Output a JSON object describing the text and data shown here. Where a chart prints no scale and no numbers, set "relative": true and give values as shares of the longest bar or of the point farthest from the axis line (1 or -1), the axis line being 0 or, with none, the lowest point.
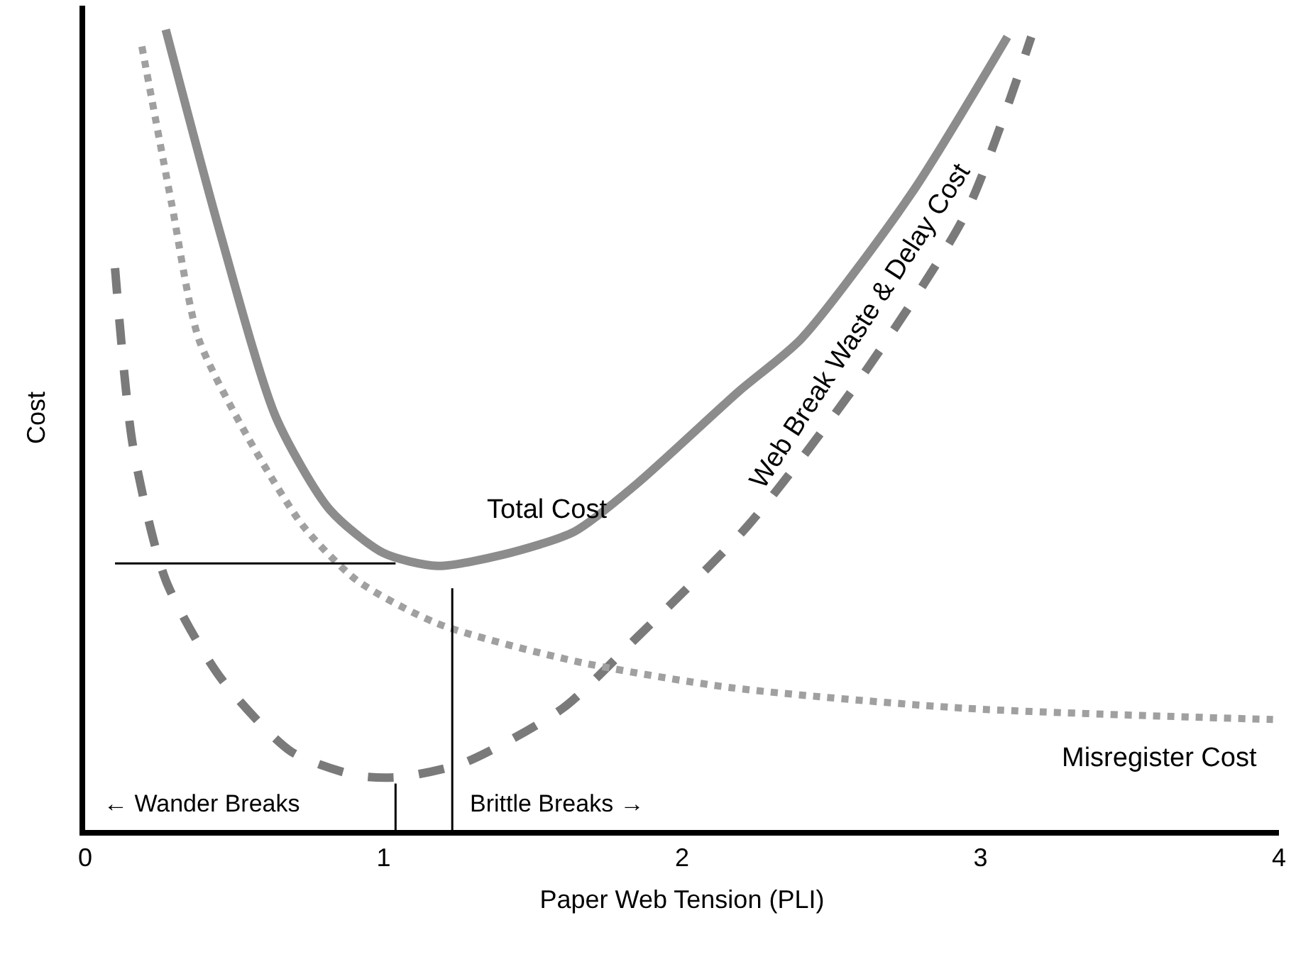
{
  "chart_data": {
    "type": "line",
    "relative": true,
    "xlabel": "Paper Web Tension (PLI)",
    "ylabel": "Cost",
    "xlim": [
      0,
      4
    ],
    "xticks": [
      0,
      1,
      2,
      3,
      4
    ],
    "legend": false,
    "tick_labels": "x",
    "marker": "none",
    "series": [
      {
        "name": "Total Cost",
        "color": "#8c8c8c",
        "line_style": "solid",
        "x": [
          0.27,
          0.45,
          0.64,
          0.82,
          1.0,
          1.18,
          1.4,
          1.64,
          1.85,
          2.19,
          2.4,
          2.77,
          3.09
        ],
        "values": [
          1,
          0.749,
          0.515,
          0.4,
          0.346,
          0.33,
          0.344,
          0.373,
          0.433,
          0.548,
          0.614,
          0.796,
          0.991
        ]
      },
      {
        "name": "Web Break Waste & Delay Cost",
        "color": "#7a7a7a",
        "line_style": "dashed",
        "x": [
          0.1,
          0.16,
          0.27,
          0.45,
          0.69,
          0.91,
          1.05,
          1.27,
          1.6,
          1.85,
          2.22,
          2.59,
          2.95,
          3.17
        ],
        "values": [
          0.702,
          0.48,
          0.312,
          0.192,
          0.098,
          0.068,
          0.066,
          0.084,
          0.152,
          0.241,
          0.38,
          0.56,
          0.77,
          0.991
        ]
      },
      {
        "name": "Misregister Cost",
        "color": "#a0a0a0",
        "line_style": "dotted",
        "x": [
          0.19,
          0.29,
          0.38,
          0.54,
          0.73,
          0.91,
          1.18,
          1.64,
          2.16,
          2.95,
          3.98
        ],
        "values": [
          0.979,
          0.782,
          0.614,
          0.494,
          0.38,
          0.312,
          0.258,
          0.211,
          0.178,
          0.152,
          0.138
        ]
      },
      {
        "color": "#000000",
        "line_style": "solid",
        "x": [
          0.1,
          1.04
        ],
        "values": [
          0.333,
          0.333
        ]
      },
      {
        "color": "#000000",
        "line_style": "solid",
        "x": [
          1.23,
          1.23
        ],
        "values": [
          0,
          0.302
        ]
      },
      {
        "color": "#000000",
        "line_style": "solid",
        "x": [
          1.04,
          1.04
        ],
        "values": [
          0,
          0.058
        ]
      }
    ],
    "annotations": [
      "← Wander Breaks",
      "Brittle Breaks →"
    ]
  }
}
